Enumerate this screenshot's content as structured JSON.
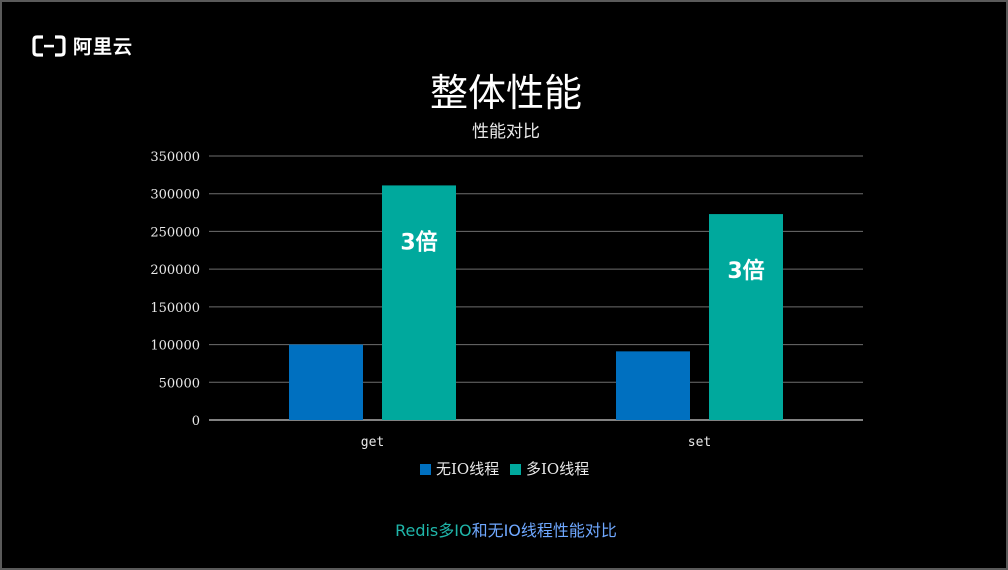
{
  "brand": {
    "logo_text": "阿里云",
    "logo_icon": "aliyun-logo-icon"
  },
  "slide": {
    "title": "整体性能"
  },
  "chart_data": {
    "type": "bar",
    "title": "性能对比",
    "categories": [
      "get",
      "set"
    ],
    "series": [
      {
        "name": "无IO线程",
        "values": [
          100000,
          91000
        ],
        "color": "#0070c0"
      },
      {
        "name": "多IO线程",
        "values": [
          311000,
          273000
        ],
        "color": "#00a99d"
      }
    ],
    "annotations": [
      {
        "category": "get",
        "series": "多IO线程",
        "text": "3倍"
      },
      {
        "category": "set",
        "series": "多IO线程",
        "text": "3倍"
      }
    ],
    "ylim": [
      0,
      350000
    ],
    "yticks": [
      "0",
      "50000",
      "100000",
      "150000",
      "200000",
      "250000",
      "300000",
      "350000"
    ],
    "grid": true,
    "legend_position": "bottom"
  },
  "caption": {
    "part_a": "Redis多IO",
    "part_b": "和无IO线程性能对比"
  }
}
